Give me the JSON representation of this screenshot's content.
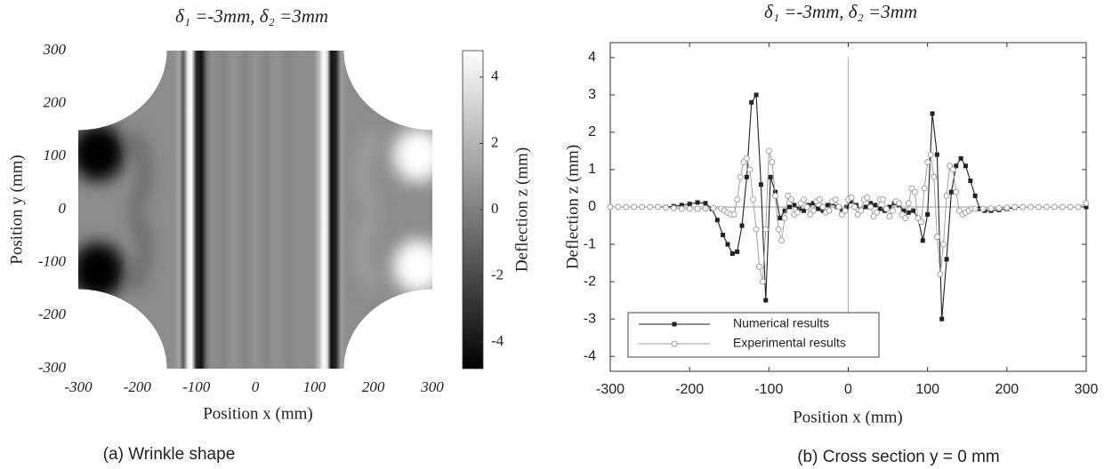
{
  "chart_data": [
    {
      "type": "heatmap",
      "title": "δ₁ =-3mm,   δ₂ =3mm",
      "xlabel": "Position x (mm)",
      "ylabel": "Position y (mm)",
      "caption": "(a) Wrinkle shape",
      "xlim": [
        -300,
        300
      ],
      "ylim": [
        -300,
        300
      ],
      "xticks": [
        -300,
        -200,
        -100,
        0,
        100,
        200,
        300
      ],
      "yticks": [
        -300,
        -200,
        -100,
        0,
        100,
        200,
        300
      ],
      "colorbar": {
        "label": "Deflection z (mm)",
        "lim": [
          -4.8,
          4.8
        ],
        "ticks": [
          -4,
          -2,
          0,
          2,
          4
        ]
      }
    },
    {
      "type": "line",
      "title": "δ₁ =-3mm,   δ₂ =3mm",
      "xlabel": "Position x (mm)",
      "ylabel": "Deflection z (mm)",
      "caption": "(b) Cross section y = 0 mm",
      "xlim": [
        -300,
        300
      ],
      "ylim": [
        -4.4,
        4.4
      ],
      "xticks": [
        -300,
        -200,
        -100,
        0,
        100,
        200,
        300
      ],
      "yticks": [
        -4,
        -3,
        -2,
        -1,
        0,
        1,
        2,
        3,
        4
      ],
      "legend": "lower left",
      "series": [
        {
          "name": "Numerical results",
          "color": "#222222",
          "marker": "square",
          "x": [
            -300,
            -290,
            -280,
            -270,
            -260,
            -250,
            -240,
            -230,
            -220,
            -210,
            -200,
            -190,
            -180,
            -172,
            -165,
            -158,
            -152,
            -146,
            -140,
            -134,
            -128,
            -122,
            -116,
            -110,
            -104,
            -98,
            -92,
            -86,
            -80,
            -74,
            -68,
            -62,
            -56,
            -50,
            -44,
            -38,
            -32,
            -26,
            -20,
            -14,
            -8,
            -2,
            4,
            10,
            16,
            22,
            28,
            34,
            40,
            46,
            52,
            58,
            64,
            70,
            76,
            82,
            88,
            94,
            100,
            106,
            112,
            118,
            124,
            130,
            136,
            142,
            148,
            154,
            160,
            166,
            172,
            180,
            190,
            200,
            210,
            220,
            230,
            240,
            250,
            260,
            270,
            280,
            290,
            300
          ],
          "values": [
            0,
            0,
            0,
            0,
            0,
            0,
            0,
            0,
            0.02,
            0.05,
            0.08,
            0.12,
            0.1,
            -0.05,
            -0.35,
            -0.75,
            -1.0,
            -1.25,
            -1.2,
            -0.5,
            0.8,
            2.8,
            3.0,
            0.6,
            -2.5,
            0.8,
            0.4,
            -0.3,
            -0.1,
            0.0,
            0.05,
            -0.05,
            -0.1,
            0.05,
            0.1,
            -0.05,
            -0.1,
            0.05,
            0.1,
            0.0,
            -0.1,
            0.0,
            0.15,
            0.05,
            -0.1,
            0.0,
            0.1,
            0.05,
            -0.05,
            -0.1,
            0.0,
            0.1,
            0.05,
            -0.1,
            -0.15,
            -0.1,
            -0.3,
            -0.9,
            -0.2,
            2.5,
            1.4,
            -3.0,
            -1.4,
            0.4,
            1.1,
            1.3,
            1.1,
            0.7,
            0.3,
            -0.05,
            -0.1,
            -0.1,
            -0.08,
            -0.05,
            -0.02,
            0,
            0,
            0,
            0,
            0,
            0,
            0,
            0,
            0
          ]
        },
        {
          "name": "Experimental results",
          "color": "#9a9a9a",
          "marker": "circle",
          "x": [
            -300,
            -290,
            -280,
            -270,
            -260,
            -250,
            -240,
            -230,
            -220,
            -210,
            -200,
            -190,
            -180,
            -170,
            -160,
            -156,
            -152,
            -148,
            -144,
            -140,
            -136,
            -132,
            -128,
            -124,
            -120,
            -116,
            -112,
            -108,
            -104,
            -100,
            -96,
            -92,
            -88,
            -84,
            -80,
            -76,
            -72,
            -68,
            -64,
            -60,
            -56,
            -52,
            -48,
            -44,
            -40,
            -36,
            -32,
            -28,
            -24,
            -20,
            -16,
            -12,
            -8,
            -4,
            0,
            4,
            8,
            12,
            16,
            20,
            24,
            28,
            32,
            36,
            40,
            44,
            48,
            52,
            56,
            60,
            64,
            68,
            72,
            76,
            80,
            84,
            88,
            92,
            96,
            100,
            104,
            108,
            112,
            116,
            120,
            124,
            128,
            132,
            136,
            140,
            144,
            148,
            152,
            156,
            160,
            170,
            180,
            190,
            200,
            210,
            220,
            230,
            240,
            250,
            260,
            270,
            280,
            290,
            300
          ],
          "values": [
            0,
            0,
            0,
            0,
            0,
            0,
            0,
            -0.02,
            -0.03,
            -0.05,
            -0.05,
            -0.05,
            -0.04,
            -0.03,
            -0.05,
            -0.1,
            -0.15,
            -0.2,
            -0.2,
            0.2,
            0.8,
            1.2,
            1.3,
            1.0,
            0.2,
            -0.6,
            -1.6,
            -2.0,
            -0.6,
            1.5,
            1.2,
            0.3,
            -0.6,
            -0.9,
            -0.3,
            0.3,
            0.2,
            -0.2,
            -0.15,
            0.1,
            0.2,
            0.0,
            -0.2,
            -0.1,
            0.15,
            0.2,
            0.0,
            -0.15,
            -0.1,
            0.15,
            0.2,
            0.0,
            -0.2,
            -0.1,
            0.2,
            0.25,
            0.0,
            -0.2,
            -0.1,
            0.2,
            0.25,
            0.0,
            -0.25,
            -0.15,
            0.2,
            0.2,
            -0.05,
            -0.25,
            -0.1,
            0.15,
            0.1,
            -0.2,
            -0.3,
            0.1,
            0.5,
            0.4,
            -0.3,
            -0.4,
            0.5,
            1.2,
            1.4,
            0.8,
            -0.8,
            -1.8,
            -1.0,
            0.3,
            1.1,
            1.0,
            0.4,
            -0.1,
            -0.2,
            -0.15,
            -0.1,
            -0.05,
            -0.05,
            -0.05,
            -0.04,
            -0.03,
            -0.02,
            0,
            0,
            0,
            0,
            0,
            0,
            0,
            0,
            0,
            0.1
          ]
        }
      ]
    }
  ]
}
